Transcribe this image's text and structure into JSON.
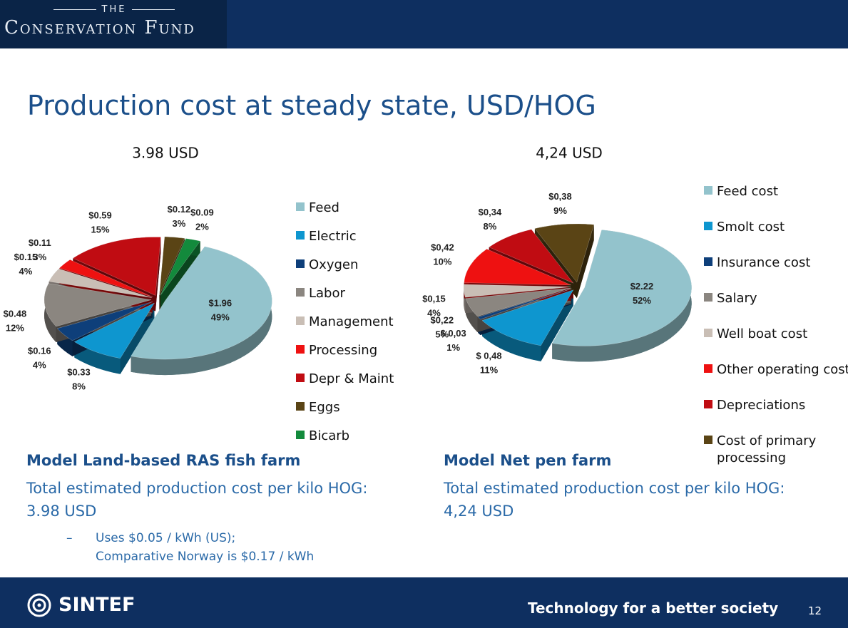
{
  "header": {
    "logo_small": "THE",
    "logo": "Conservation Fund"
  },
  "title": "Production cost at steady state, USD/HOG",
  "chart_data": [
    {
      "type": "pie",
      "title": "3.98 USD",
      "categories": [
        "Feed",
        "Electric",
        "Oxygen",
        "Labor",
        "Management",
        "Processing",
        "Depr & Maint",
        "Eggs",
        "Bicarb"
      ],
      "values": [
        1.96,
        0.33,
        0.16,
        0.48,
        0.15,
        0.11,
        0.59,
        0.12,
        0.09
      ],
      "value_labels": [
        "$1.96",
        "$0.33",
        "$0.16",
        "$0.48",
        "$0.15",
        "$0.11",
        "$0.59",
        "$0.12",
        "$0.09"
      ],
      "percents": [
        49,
        8,
        4,
        12,
        4,
        3,
        15,
        3,
        2
      ],
      "percent_labels": [
        "49%",
        "8%",
        "4%",
        "12%",
        "4%",
        "3%",
        "15%",
        "3%",
        "2%"
      ],
      "colors": [
        "#93c3cc",
        "#0e96cf",
        "#0e3f7a",
        "#8b8680",
        "#c9beb5",
        "#ee1111",
        "#c00c12",
        "#5a4415",
        "#138a3c"
      ],
      "legend": "right"
    },
    {
      "type": "pie",
      "title": "4,24 USD",
      "categories": [
        "Feed cost",
        "Smolt cost",
        "Insurance cost",
        "Salary",
        "Well boat cost",
        "Other operating cost",
        "Depreciations",
        "Cost of primary processing"
      ],
      "values": [
        2.22,
        0.48,
        0.03,
        0.22,
        0.15,
        0.42,
        0.34,
        0.38
      ],
      "value_labels": [
        "$2.22",
        "$ 0,48",
        "$ 0,03",
        "$0,22",
        "$0,15",
        "$0,42",
        "$0,34",
        "$0,38"
      ],
      "percents": [
        52,
        11,
        1,
        5,
        4,
        10,
        8,
        9
      ],
      "percent_labels": [
        "52%",
        "11%",
        "1%",
        "5%",
        "4%",
        "10%",
        "8%",
        "9%"
      ],
      "colors": [
        "#93c3cc",
        "#0e96cf",
        "#0e3f7a",
        "#8b8680",
        "#c9beb5",
        "#ee1111",
        "#c00c12",
        "#5a4415"
      ],
      "legend": "right"
    }
  ],
  "sections": [
    {
      "heading": "Model Land-based RAS fish farm",
      "text": "Total estimated production cost per kilo HOG:",
      "value": "3.98 USD",
      "bullet": [
        "Uses $0.05 / kWh (US);",
        "Comparative Norway is $0.17 / kWh"
      ]
    },
    {
      "heading": "Model Net pen farm",
      "text": "Total estimated production cost per kilo HOG:",
      "value": "4,24 USD"
    }
  ],
  "footer": {
    "brand": "SINTEF",
    "tagline": "Technology for a better society",
    "page": 12
  }
}
